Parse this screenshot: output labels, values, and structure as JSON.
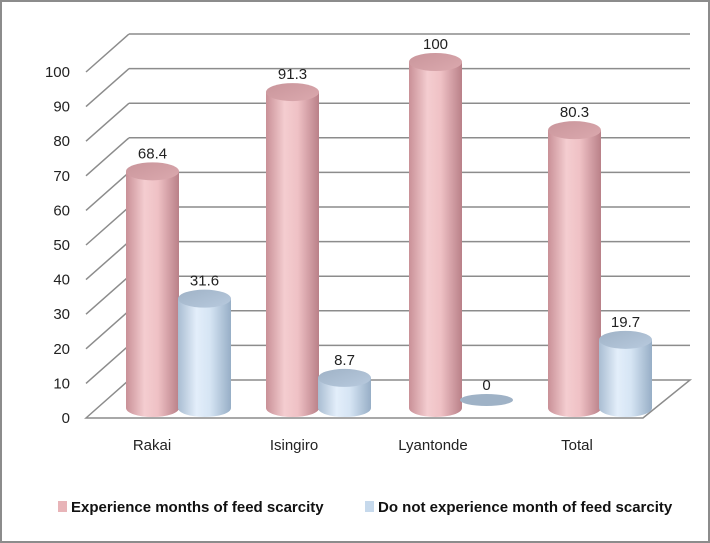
{
  "chart_data": {
    "type": "bar",
    "style": "3d-cylinder",
    "title": "",
    "xlabel": "",
    "ylabel": "",
    "ylim": [
      0,
      100
    ],
    "yticks": [
      0,
      10,
      20,
      30,
      40,
      50,
      60,
      70,
      80,
      90,
      100
    ],
    "grid": true,
    "categories": [
      "Rakai",
      "Isingiro",
      "Lyantonde",
      "Total"
    ],
    "series": [
      {
        "name": "Experience months of feed scarcity",
        "color": "#e8b4b8",
        "values": [
          68.4,
          91.3,
          100,
          80.3
        ],
        "labels": [
          "68.4",
          "91.3",
          "100",
          "80.3"
        ]
      },
      {
        "name": "Do not experience month of feed scarcity",
        "color": "#c6d9ec",
        "values": [
          31.6,
          8.7,
          0,
          19.7
        ],
        "labels": [
          "31.6",
          "8.7",
          "0",
          "19.7"
        ]
      }
    ],
    "legend_position": "bottom"
  }
}
